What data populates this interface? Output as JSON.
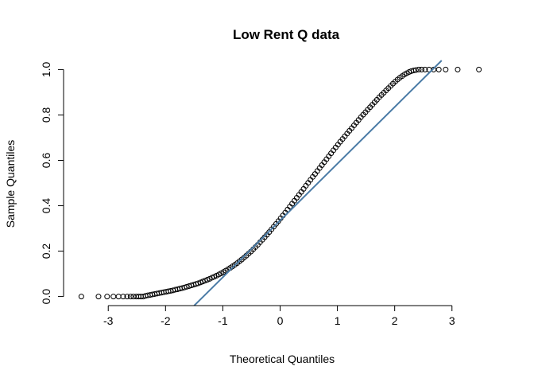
{
  "chart_data": {
    "type": "scatter",
    "title": "Low Rent Q data",
    "xlabel": "Theoretical Quantiles",
    "ylabel": "Sample Quantiles",
    "xlim": [
      -3.5,
      3.5
    ],
    "ylim": [
      0,
      1.0
    ],
    "x_ticks": [
      -3,
      -2,
      -1,
      0,
      1,
      2,
      3
    ],
    "y_ticks": [
      0.0,
      0.2,
      0.4,
      0.6,
      0.8,
      1.0
    ],
    "y_tick_labels": [
      "0.0",
      "0.2",
      "0.4",
      "0.6",
      "0.8",
      "1.0"
    ],
    "grid": false,
    "point_color": "#000000",
    "reference_line": {
      "color": "#4a7ba6",
      "slope": 0.25,
      "intercept": 0.335
    },
    "series": [
      {
        "points": [
          [
            -3.47,
            0.0
          ],
          [
            -3.17,
            0.0
          ],
          [
            -3.02,
            0.0
          ],
          [
            -2.91,
            0.0
          ],
          [
            -2.82,
            0.0
          ],
          [
            -2.74,
            0.0
          ],
          [
            -2.67,
            0.0
          ],
          [
            -2.61,
            0.0
          ],
          [
            -2.56,
            0.0
          ],
          [
            -2.51,
            0.0
          ],
          [
            -2.47,
            0.0
          ],
          [
            -2.43,
            0.0
          ],
          [
            -2.39,
            0.0
          ],
          [
            -2.35,
            0.003
          ],
          [
            -2.31,
            0.005
          ],
          [
            -2.27,
            0.007
          ],
          [
            -2.23,
            0.009
          ],
          [
            -2.19,
            0.011
          ],
          [
            -2.15,
            0.013
          ],
          [
            -2.11,
            0.015
          ],
          [
            -2.07,
            0.017
          ],
          [
            -2.03,
            0.019
          ],
          [
            -1.99,
            0.021
          ],
          [
            -1.95,
            0.023
          ],
          [
            -1.91,
            0.025
          ],
          [
            -1.87,
            0.027
          ],
          [
            -1.83,
            0.03
          ],
          [
            -1.79,
            0.032
          ],
          [
            -1.75,
            0.035
          ],
          [
            -1.71,
            0.037
          ],
          [
            -1.67,
            0.04
          ],
          [
            -1.63,
            0.043
          ],
          [
            -1.59,
            0.046
          ],
          [
            -1.55,
            0.049
          ],
          [
            -1.51,
            0.052
          ],
          [
            -1.47,
            0.055
          ],
          [
            -1.43,
            0.058
          ],
          [
            -1.39,
            0.062
          ],
          [
            -1.35,
            0.066
          ],
          [
            -1.31,
            0.07
          ],
          [
            -1.27,
            0.074
          ],
          [
            -1.23,
            0.078
          ],
          [
            -1.19,
            0.083
          ],
          [
            -1.15,
            0.087
          ],
          [
            -1.11,
            0.092
          ],
          [
            -1.07,
            0.097
          ],
          [
            -1.03,
            0.102
          ],
          [
            -0.99,
            0.108
          ],
          [
            -0.95,
            0.114
          ],
          [
            -0.91,
            0.12
          ],
          [
            -0.87,
            0.126
          ],
          [
            -0.83,
            0.133
          ],
          [
            -0.79,
            0.14
          ],
          [
            -0.75,
            0.147
          ],
          [
            -0.71,
            0.155
          ],
          [
            -0.67,
            0.163
          ],
          [
            -0.63,
            0.171
          ],
          [
            -0.59,
            0.18
          ],
          [
            -0.55,
            0.189
          ],
          [
            -0.51,
            0.198
          ],
          [
            -0.47,
            0.208
          ],
          [
            -0.43,
            0.218
          ],
          [
            -0.39,
            0.228
          ],
          [
            -0.35,
            0.239
          ],
          [
            -0.31,
            0.25
          ],
          [
            -0.27,
            0.261
          ],
          [
            -0.23,
            0.272
          ],
          [
            -0.19,
            0.284
          ],
          [
            -0.15,
            0.296
          ],
          [
            -0.11,
            0.308
          ],
          [
            -0.07,
            0.32
          ],
          [
            -0.03,
            0.332
          ],
          [
            0.01,
            0.345
          ],
          [
            0.05,
            0.357
          ],
          [
            0.09,
            0.37
          ],
          [
            0.13,
            0.383
          ],
          [
            0.17,
            0.396
          ],
          [
            0.21,
            0.409
          ],
          [
            0.25,
            0.422
          ],
          [
            0.29,
            0.435
          ],
          [
            0.33,
            0.448
          ],
          [
            0.37,
            0.461
          ],
          [
            0.41,
            0.474
          ],
          [
            0.45,
            0.488
          ],
          [
            0.49,
            0.501
          ],
          [
            0.53,
            0.514
          ],
          [
            0.57,
            0.527
          ],
          [
            0.61,
            0.54
          ],
          [
            0.65,
            0.553
          ],
          [
            0.69,
            0.566
          ],
          [
            0.73,
            0.579
          ],
          [
            0.77,
            0.592
          ],
          [
            0.81,
            0.605
          ],
          [
            0.85,
            0.618
          ],
          [
            0.89,
            0.631
          ],
          [
            0.93,
            0.644
          ],
          [
            0.97,
            0.657
          ],
          [
            1.01,
            0.669
          ],
          [
            1.05,
            0.682
          ],
          [
            1.09,
            0.694
          ],
          [
            1.13,
            0.706
          ],
          [
            1.17,
            0.718
          ],
          [
            1.21,
            0.73
          ],
          [
            1.25,
            0.742
          ],
          [
            1.29,
            0.754
          ],
          [
            1.33,
            0.766
          ],
          [
            1.37,
            0.778
          ],
          [
            1.41,
            0.79
          ],
          [
            1.45,
            0.801
          ],
          [
            1.49,
            0.812
          ],
          [
            1.53,
            0.823
          ],
          [
            1.57,
            0.834
          ],
          [
            1.61,
            0.845
          ],
          [
            1.65,
            0.856
          ],
          [
            1.69,
            0.867
          ],
          [
            1.73,
            0.878
          ],
          [
            1.77,
            0.888
          ],
          [
            1.81,
            0.898
          ],
          [
            1.85,
            0.908
          ],
          [
            1.89,
            0.918
          ],
          [
            1.93,
            0.928
          ],
          [
            1.97,
            0.938
          ],
          [
            2.01,
            0.947
          ],
          [
            2.05,
            0.956
          ],
          [
            2.09,
            0.964
          ],
          [
            2.13,
            0.971
          ],
          [
            2.17,
            0.978
          ],
          [
            2.21,
            0.984
          ],
          [
            2.25,
            0.989
          ],
          [
            2.29,
            0.993
          ],
          [
            2.33,
            0.996
          ],
          [
            2.37,
            0.998
          ],
          [
            2.42,
            1.0
          ],
          [
            2.47,
            1.0
          ],
          [
            2.53,
            1.0
          ],
          [
            2.6,
            1.0
          ],
          [
            2.68,
            1.0
          ],
          [
            2.77,
            1.0
          ],
          [
            2.89,
            1.0
          ],
          [
            3.1,
            1.0
          ],
          [
            3.47,
            1.0
          ]
        ]
      }
    ]
  }
}
